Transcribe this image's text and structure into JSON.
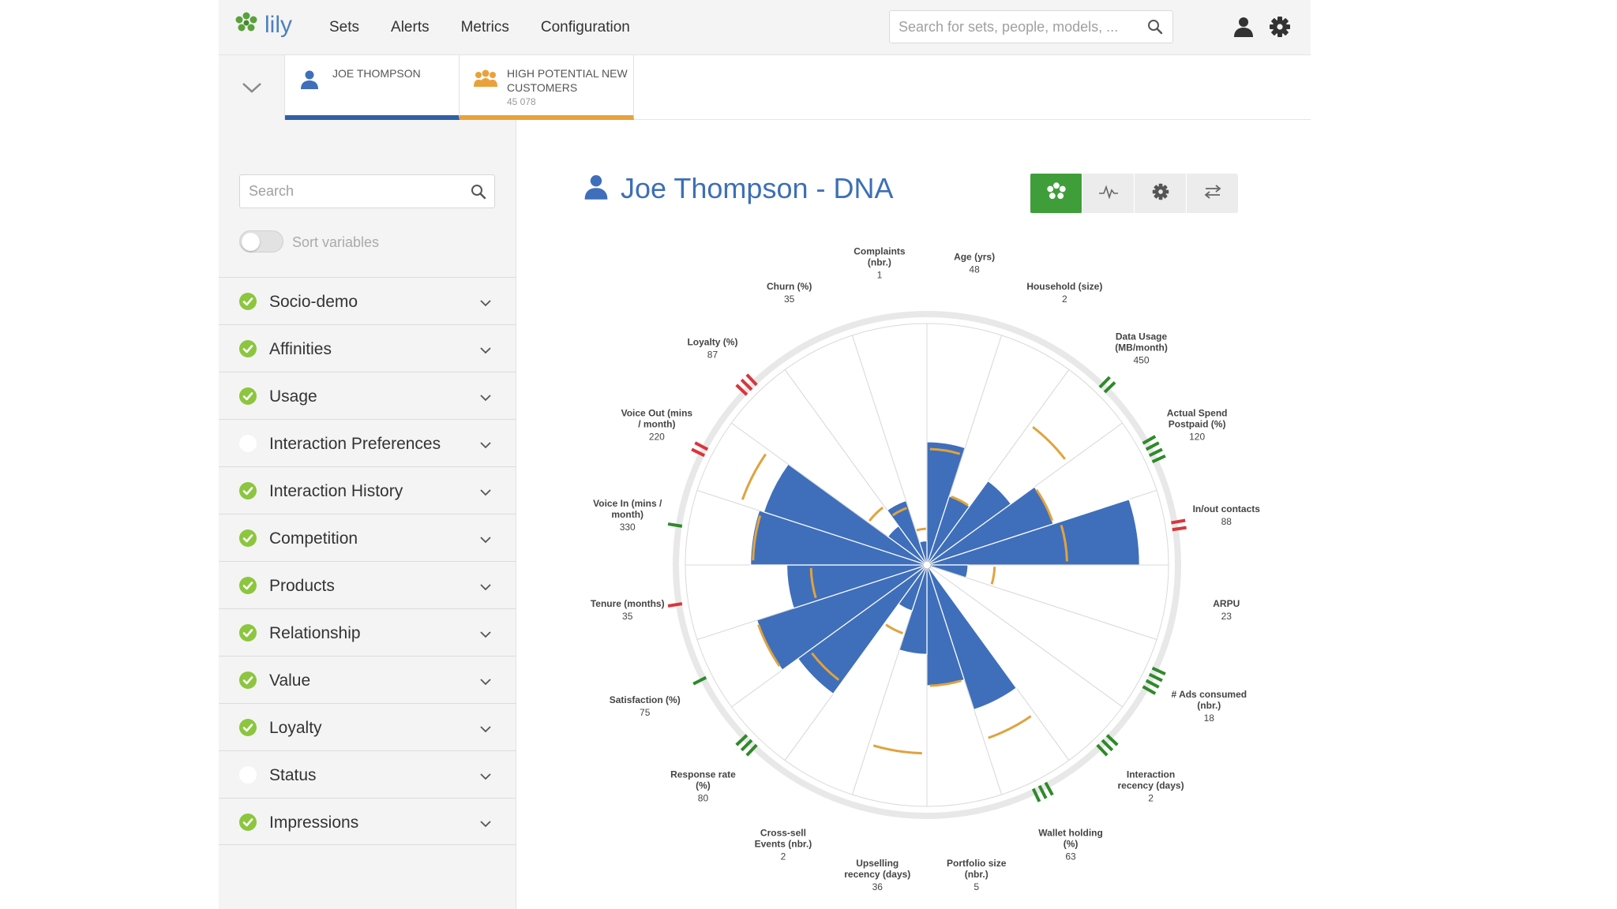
{
  "app": {
    "logo_text": "lily"
  },
  "nav": {
    "items": [
      "Sets",
      "Alerts",
      "Metrics",
      "Configuration"
    ]
  },
  "search_top": {
    "placeholder": "Search for sets, people, models, ..."
  },
  "tabs": [
    {
      "label": "JOE THOMPSON",
      "count": ""
    },
    {
      "label": "HIGH POTENTIAL NEW CUSTOMERS",
      "count": "45 078"
    }
  ],
  "sidebar": {
    "search_placeholder": "Search",
    "sort_label": "Sort variables",
    "sort_enabled": false,
    "categories": [
      {
        "label": "Socio-demo",
        "checked": true
      },
      {
        "label": "Affinities",
        "checked": true
      },
      {
        "label": "Usage",
        "checked": true
      },
      {
        "label": "Interaction Preferences",
        "checked": false
      },
      {
        "label": "Interaction History",
        "checked": true
      },
      {
        "label": "Competition",
        "checked": true
      },
      {
        "label": "Products",
        "checked": true
      },
      {
        "label": "Relationship",
        "checked": true
      },
      {
        "label": "Value",
        "checked": true
      },
      {
        "label": "Loyalty",
        "checked": true
      },
      {
        "label": "Status",
        "checked": false
      },
      {
        "label": "Impressions",
        "checked": true
      }
    ]
  },
  "main": {
    "title_name": "Joe Thompson",
    "title_suffix": "- DNA",
    "view_buttons": [
      "dna-view",
      "pulse-view",
      "settings",
      "swap"
    ]
  },
  "colors": {
    "accent_blue": "#3f6fba",
    "bar_blue": "#3f6fba",
    "benchmark_orange": "#e0a33e",
    "positive_green": "#2f8a2a",
    "negative_red": "#d9353a",
    "check_green": "#8cc63f",
    "active_button_green": "#3f9e3a"
  },
  "chart_data": {
    "type": "radial-bar",
    "title": "",
    "variables": [
      {
        "name": "Age (yrs)",
        "value": "48",
        "score": 0.51,
        "benchmark": 0.48
      },
      {
        "name": "Household (size)",
        "value": "2",
        "score": 0.3,
        "benchmark": 0.3
      },
      {
        "name": "Data Usage (MB/month)",
        "value": "450",
        "score": 0.43,
        "benchmark": 0.72
      },
      {
        "name": "Actual Spend Postpaid (%)",
        "value": "120",
        "score": 0.55,
        "benchmark": 0.55
      },
      {
        "name": "In/out contacts",
        "value": "88",
        "score": 0.88,
        "benchmark": 0.58
      },
      {
        "name": "ARPU",
        "value": "23",
        "score": 0.17,
        "benchmark": 0.28
      },
      {
        "name": "# Ads consumed (nbr.)",
        "value": "18",
        "score": 0.0,
        "benchmark": 0.0
      },
      {
        "name": "Interaction recency (days)",
        "value": "2",
        "score": 0.0,
        "benchmark": 0.0
      },
      {
        "name": "Wallet holding (%)",
        "value": "63",
        "score": 0.63,
        "benchmark": 0.76
      },
      {
        "name": "Portfolio size (nbr.)",
        "value": "5",
        "score": 0.5,
        "benchmark": 0.5
      },
      {
        "name": "Upselling recency (days)",
        "value": "36",
        "score": 0.37,
        "benchmark": 0.78
      },
      {
        "name": "Cross-sell Events (nbr.)",
        "value": "2",
        "score": 0.2,
        "benchmark": 0.3
      },
      {
        "name": "Response rate (%)",
        "value": "80",
        "score": 0.66,
        "benchmark": 0.6
      },
      {
        "name": "Satisfaction (%)",
        "value": "75",
        "score": 0.74,
        "benchmark": 0.74
      },
      {
        "name": "Tenure (months)",
        "value": "35",
        "score": 0.58,
        "benchmark": 0.48
      },
      {
        "name": "Voice In (mins / month)",
        "value": "330",
        "score": 0.73,
        "benchmark": 0.72
      },
      {
        "name": "Voice Out (mins / month)",
        "value": "220",
        "score": 0.71,
        "benchmark": 0.81
      },
      {
        "name": "Loyalty (%)",
        "value": "87",
        "score": 0.2,
        "benchmark": 0.3
      },
      {
        "name": "Churn (%)",
        "value": "35",
        "score": 0.28,
        "benchmark": 0.25
      },
      {
        "name": "Complaints (nbr.)",
        "value": "1",
        "score": 0.1,
        "benchmark": 0.15
      }
    ],
    "indicators": [
      {
        "variable": "Data Usage (MB/month)",
        "direction": "positive",
        "strength": 2
      },
      {
        "variable": "Actual Spend Postpaid (%)",
        "direction": "positive",
        "strength": 4
      },
      {
        "variable": "In/out contacts",
        "direction": "negative",
        "strength": 2
      },
      {
        "variable": "# Ads consumed (nbr.)",
        "direction": "positive",
        "strength": 4
      },
      {
        "variable": "Interaction recency (days)",
        "direction": "positive",
        "strength": 3
      },
      {
        "variable": "Wallet holding (%)",
        "direction": "positive",
        "strength": 3
      },
      {
        "variable": "Response rate (%)",
        "direction": "positive",
        "strength": 3
      },
      {
        "variable": "Satisfaction (%)",
        "direction": "positive",
        "strength": 1
      },
      {
        "variable": "Tenure (months)",
        "direction": "negative",
        "strength": 1
      },
      {
        "variable": "Voice In (mins / month)",
        "direction": "positive",
        "strength": 1
      },
      {
        "variable": "Voice Out (mins / month)",
        "direction": "negative",
        "strength": 2
      },
      {
        "variable": "Loyalty (%)",
        "direction": "negative",
        "strength": 3
      }
    ]
  }
}
